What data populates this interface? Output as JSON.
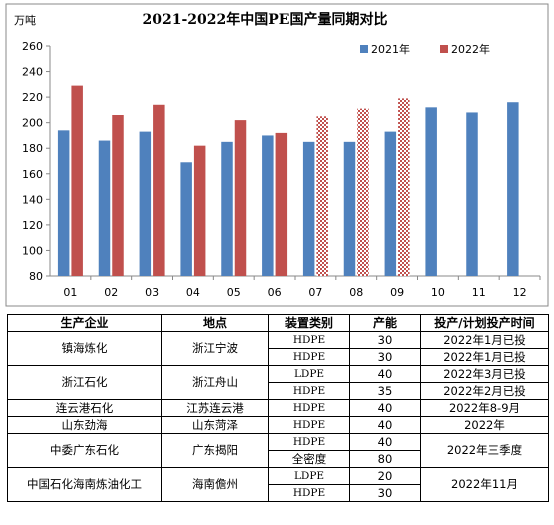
{
  "chart_data": {
    "type": "bar",
    "title": "2021-2022年中国PE国产量同期对比",
    "ylabel": "万吨",
    "ylim": [
      80,
      260
    ],
    "yticks": [
      80,
      100,
      120,
      140,
      160,
      180,
      200,
      220,
      240,
      260
    ],
    "categories": [
      "01",
      "02",
      "03",
      "04",
      "05",
      "06",
      "07",
      "08",
      "09",
      "10",
      "11",
      "12"
    ],
    "grid": false,
    "legend": "top-right",
    "series": [
      {
        "name": "2021年",
        "color": "#4f81bd",
        "values": [
          194,
          186,
          193,
          169,
          185,
          190,
          185,
          185,
          193,
          212,
          208,
          216
        ]
      },
      {
        "name": "2022年",
        "color": "#c0504d",
        "values": [
          229,
          206,
          214,
          182,
          202,
          192,
          205,
          211,
          219,
          null,
          null,
          null
        ],
        "hatched_from_index": 6
      }
    ]
  },
  "table": {
    "headers": [
      "生产企业",
      "地点",
      "装置类别",
      "产能",
      "投产/计划投产时间"
    ],
    "rows": [
      {
        "company": "镇海炼化",
        "location": "浙江宁波",
        "type": "HDPE",
        "capacity": "30",
        "time": "2022年1月已投"
      },
      {
        "company": "",
        "location": "",
        "type": "HDPE",
        "capacity": "30",
        "time": "2022年1月已投"
      },
      {
        "company": "浙江石化",
        "location": "浙江舟山",
        "type": "LDPE",
        "capacity": "40",
        "time": "2022年3月已投"
      },
      {
        "company": "",
        "location": "",
        "type": "HDPE",
        "capacity": "35",
        "time": "2022年2月已投"
      },
      {
        "company": "连云港石化",
        "location": "江苏连云港",
        "type": "HDPE",
        "capacity": "40",
        "time": "2022年8-9月"
      },
      {
        "company": "山东劲海",
        "location": "山东菏泽",
        "type": "HDPE",
        "capacity": "40",
        "time": "2022年"
      },
      {
        "company": "中委广东石化",
        "location": "广东揭阳",
        "type": "HDPE",
        "capacity": "40",
        "time": "2022年三季度"
      },
      {
        "company": "",
        "location": "",
        "type": "全密度",
        "capacity": "80",
        "time": ""
      },
      {
        "company": "中国石化海南炼油化工",
        "location": "海南儋州",
        "type": "LDPE",
        "capacity": "20",
        "time": "2022年11月"
      },
      {
        "company": "",
        "location": "",
        "type": "HDPE",
        "capacity": "30",
        "time": ""
      }
    ]
  }
}
